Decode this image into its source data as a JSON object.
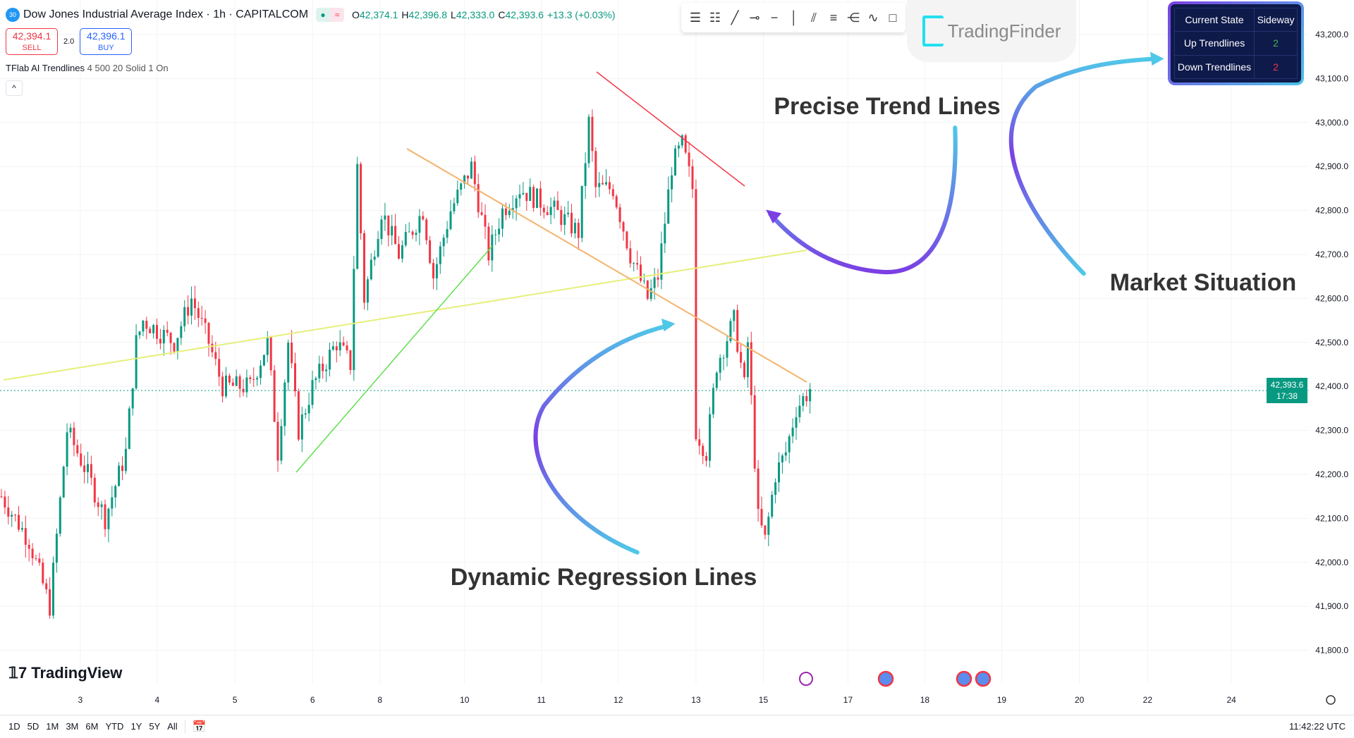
{
  "header": {
    "symbol_badge": "30",
    "title": "Dow Jones Industrial Average Index · 1h · CAPITALCOM",
    "status_icons": [
      "market-open-dot",
      "delayed-wave"
    ],
    "ohlc": {
      "o_label": "O",
      "o": "42,374.1",
      "h_label": "H",
      "h": "42,396.8",
      "l_label": "L",
      "l": "42,333.0",
      "c_label": "C",
      "c": "42,393.6",
      "change": "+13.3 (+0.03%)"
    }
  },
  "trade": {
    "sell_price": "42,394.1",
    "sell_label": "SELL",
    "spread": "2.0",
    "buy_price": "42,396.1",
    "buy_label": "BUY"
  },
  "indicator": {
    "name": "TFlab AI Trendlines",
    "params": "4 500 20 Solid 1 On"
  },
  "toolbar": {
    "tools": [
      "parallel-channel-icon",
      "regression-channel-icon",
      "trend-line-icon",
      "horizontal-ray-icon",
      "horizontal-line-icon",
      "vertical-line-icon",
      "info-line-icon",
      "fib-icon",
      "pitchfork-icon",
      "path-icon",
      "rectangle-icon"
    ]
  },
  "brand": {
    "name": "TradingFinder"
  },
  "state_table": {
    "rows": [
      [
        "Current State",
        "Sideway"
      ],
      [
        "Up Trendlines",
        "2"
      ],
      [
        "Down Trendlines",
        "2"
      ]
    ],
    "up_color": "#4caf50",
    "down_color": "#f23645"
  },
  "annotations": {
    "precise": "Precise Trend Lines",
    "market": "Market Situation",
    "regression": "Dynamic Regression Lines"
  },
  "chart_data": {
    "type": "candlestick",
    "y_ticks": [
      "43,200.0",
      "43,100.0",
      "43,000.0",
      "42,900.0",
      "42,800.0",
      "42,700.0",
      "42,600.0",
      "42,500.0",
      "42,400.0",
      "42,300.0",
      "42,200.0",
      "42,100.0",
      "42,000.0",
      "41,900.0",
      "41,800.0"
    ],
    "ylim": [
      41800,
      43200
    ],
    "x_ticks": [
      "3",
      "4",
      "5",
      "6",
      "8",
      "10",
      "11",
      "12",
      "13",
      "15",
      "17",
      "18",
      "19",
      "20",
      "22",
      "24"
    ],
    "current_price": "42,393.6",
    "countdown": "17:38",
    "price_path_by_bar": [
      [
        0,
        42150
      ],
      [
        8,
        42050
      ],
      [
        14,
        41900
      ],
      [
        19,
        42300
      ],
      [
        25,
        42200
      ],
      [
        30,
        42100
      ],
      [
        36,
        42250
      ],
      [
        39,
        42500
      ],
      [
        41,
        42550
      ],
      [
        50,
        42500
      ],
      [
        55,
        42600
      ],
      [
        60,
        42500
      ],
      [
        64,
        42400
      ],
      [
        72,
        42400
      ],
      [
        77,
        42500
      ],
      [
        80,
        42250
      ],
      [
        83,
        42500
      ],
      [
        86,
        42300
      ],
      [
        90,
        42400
      ],
      [
        97,
        42500
      ],
      [
        101,
        42450
      ],
      [
        103,
        42900
      ],
      [
        105,
        42600
      ],
      [
        110,
        42800
      ],
      [
        115,
        42700
      ],
      [
        122,
        42800
      ],
      [
        125,
        42650
      ],
      [
        130,
        42800
      ],
      [
        136,
        42900
      ],
      [
        141,
        42700
      ],
      [
        145,
        42800
      ],
      [
        150,
        42850
      ],
      [
        160,
        42800
      ],
      [
        167,
        42750
      ],
      [
        170,
        43000
      ],
      [
        172,
        42850
      ],
      [
        177,
        42850
      ],
      [
        182,
        42700
      ],
      [
        187,
        42600
      ],
      [
        190,
        42650
      ],
      [
        194,
        42900
      ],
      [
        197,
        42950
      ],
      [
        200,
        42850
      ],
      [
        201,
        42300
      ],
      [
        204,
        42250
      ],
      [
        207,
        42450
      ],
      [
        212,
        42550
      ],
      [
        215,
        42400
      ],
      [
        216,
        42500
      ],
      [
        219,
        42100
      ],
      [
        221,
        42050
      ],
      [
        224,
        42200
      ],
      [
        227,
        42250
      ],
      [
        230,
        42350
      ],
      [
        234,
        42393.6
      ]
    ],
    "up_color": "#089981",
    "down_color": "#f23645"
  },
  "footer": {
    "logo": "TradingView",
    "ranges": [
      "1D",
      "5D",
      "1M",
      "3M",
      "6M",
      "YTD",
      "1Y",
      "5Y",
      "All"
    ],
    "time": "11:42:22 UTC"
  }
}
